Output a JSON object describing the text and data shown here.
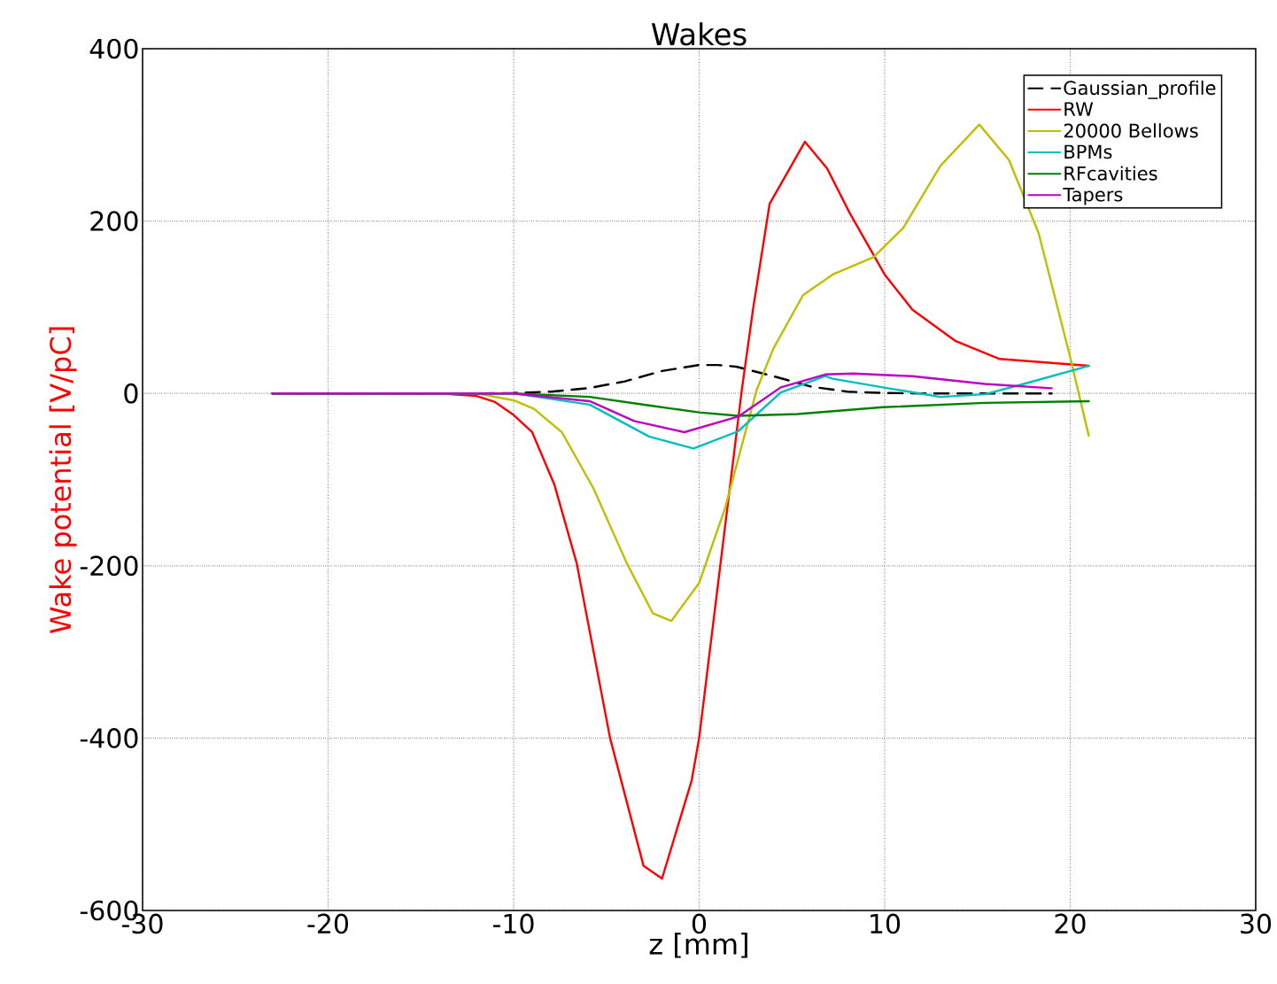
{
  "chart_data": {
    "type": "line",
    "title": "Wakes",
    "xlabel": "z [mm]",
    "ylabel": "Wake potential [V/pC]",
    "xlim": [
      -30,
      30
    ],
    "xticks": [
      -30,
      -20,
      -10,
      0,
      10,
      20,
      30
    ],
    "ylim": [
      -600,
      400
    ],
    "yticks": [
      -600,
      -400,
      -200,
      0,
      200,
      400
    ],
    "grid": true,
    "legend": "top right",
    "series": [
      {
        "name": "Gaussian_profile",
        "color": "#000000",
        "line_style": "dashed",
        "x": [
          -23,
          -12,
          -10,
          -8,
          -6,
          -4,
          -2,
          0,
          1,
          2,
          4,
          6,
          8,
          10,
          12,
          19
        ],
        "values": [
          0,
          0,
          0.5,
          2,
          6,
          14,
          26,
          33,
          33,
          31,
          20,
          8,
          2,
          0.5,
          0,
          0
        ]
      },
      {
        "name": "RW",
        "color": "#ff0000",
        "line_style": "solid",
        "x": [
          -23,
          -14,
          -12,
          -11,
          -10,
          -9,
          -7.8,
          -6.6,
          -4.8,
          -3,
          -2,
          -0.4,
          0,
          2.3,
          2.9,
          3.8,
          5.7,
          6.9,
          8.1,
          10,
          11.5,
          13.8,
          16.2,
          21
        ],
        "values": [
          0,
          0,
          -3,
          -10,
          -25,
          -45,
          -106,
          -197,
          -400,
          -548,
          -563,
          -449,
          -400,
          4,
          97,
          220,
          292,
          261,
          210,
          138,
          97,
          61,
          40,
          32
        ]
      },
      {
        "name": "20000 Bellows",
        "color": "#bfbf00",
        "line_style": "solid",
        "x": [
          -23,
          -12,
          -10,
          -8.9,
          -7.4,
          -5.7,
          -3.9,
          -2.5,
          -1.5,
          0,
          1.4,
          3.1,
          4,
          5.6,
          7.2,
          9.4,
          11,
          13,
          15.1,
          16.7,
          18.3,
          20,
          21
        ],
        "values": [
          0,
          0,
          -8,
          -18,
          -45,
          -110,
          -197,
          -255,
          -264,
          -220,
          -133,
          4,
          52,
          114,
          138,
          158,
          192,
          264,
          312,
          271,
          186,
          42,
          -49
        ]
      },
      {
        "name": "BPMs",
        "color": "#00bfbf",
        "line_style": "solid",
        "x": [
          -23,
          -10,
          -5.9,
          -2.7,
          -0.3,
          2.1,
          4.4,
          6.8,
          7.2,
          9.9,
          13,
          15.4,
          17.5,
          21
        ],
        "values": [
          0,
          0,
          -13,
          -50,
          -64,
          -44,
          1,
          20,
          17,
          7,
          -4,
          -1,
          11,
          32
        ]
      },
      {
        "name": "RFcavities",
        "color": "#008000",
        "line_style": "solid",
        "x": [
          -23,
          -10,
          -5.9,
          -2.7,
          0,
          2.1,
          5.3,
          9.9,
          15.4,
          21
        ],
        "values": [
          0,
          0,
          -4,
          -14,
          -22,
          -26,
          -24,
          -16,
          -11,
          -9
        ]
      },
      {
        "name": "Tapers",
        "color": "#bf00bf",
        "line_style": "solid",
        "x": [
          -23,
          -10,
          -5.9,
          -3.5,
          -0.8,
          2.1,
          4.4,
          6.8,
          8.3,
          11.5,
          15.4,
          19
        ],
        "values": [
          0,
          0,
          -9,
          -32,
          -45,
          -27,
          7,
          22,
          23,
          20,
          11,
          6
        ]
      }
    ]
  }
}
